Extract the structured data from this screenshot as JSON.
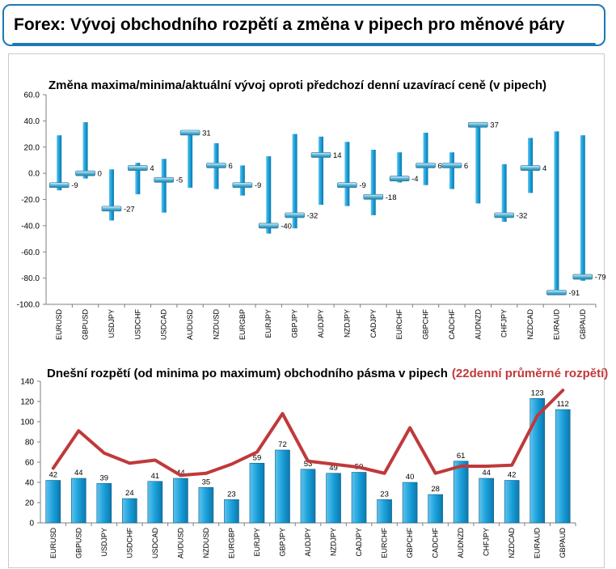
{
  "page_title": "Forex: Vývoj obchodního rozpětí a změna v pipech pro měnové páry",
  "colors": {
    "accent": "#1e78b8",
    "bar": "#1aa0da",
    "line": "#c0393b"
  },
  "chart_data": [
    {
      "type": "range",
      "title": "Změna maxima/minima/aktuální vývoj oproti předchozí denní uzavírací ceně (v pipech)",
      "ylim": [
        -100,
        60
      ],
      "yticks": [
        "60.0",
        "40.0",
        "20.0",
        "0.0",
        "-20.0",
        "-40.0",
        "-60.0",
        "-80.0",
        "-100.0"
      ],
      "ytick_values": [
        60,
        40,
        20,
        0,
        -20,
        -40,
        -60,
        -80,
        -100
      ],
      "categories": [
        "EURUSD",
        "GBPUSD",
        "USDJPY",
        "USDCHF",
        "USDCAD",
        "AUDUSD",
        "NZDUSD",
        "EURGBP",
        "EURJPY",
        "GBPJPY",
        "AUDJPY",
        "NZDJPY",
        "CADJPY",
        "EURCHF",
        "GBPCHF",
        "CADCHF",
        "AUDNZD",
        "CHFJPY",
        "NZDCAD",
        "EURAUD",
        "GBPAUD"
      ],
      "high": [
        29,
        39,
        3,
        8,
        11,
        32,
        23,
        6,
        13,
        30,
        28,
        24,
        18,
        16,
        31,
        16,
        38,
        7,
        27,
        32,
        29
      ],
      "low": [
        -13,
        -4,
        -36,
        -16,
        -30,
        -11,
        -12,
        -17,
        -46,
        -42,
        -24,
        -25,
        -32,
        -7,
        -9,
        -12,
        -23,
        -37,
        -15,
        -91,
        -82
      ],
      "current": [
        -9,
        0,
        -27,
        4,
        -5,
        31,
        6,
        -9,
        -40,
        -32,
        14,
        -9,
        -18,
        -4,
        6,
        6,
        37,
        -32,
        4,
        -91,
        -79
      ],
      "labels": [
        "-9",
        "0",
        "-27",
        "4",
        "-5",
        "31",
        "6",
        "-9",
        "-40",
        "-32",
        "14",
        "-9",
        "-18",
        "-4",
        "6",
        "6",
        "37",
        "-32",
        "4",
        "-91",
        "-79"
      ]
    },
    {
      "type": "bar",
      "title": "Dnešní rozpětí (od minima po maximum) obchodního pásma v pipech",
      "title_suffix": "(22denní průměrné rozpětí)",
      "ylim": [
        0,
        140
      ],
      "yticks": [
        "140",
        "120",
        "100",
        "80",
        "60",
        "40",
        "20",
        "0"
      ],
      "ytick_values": [
        140,
        120,
        100,
        80,
        60,
        40,
        20,
        0
      ],
      "categories": [
        "EURUSD",
        "GBPUSD",
        "USDJPY",
        "USDCHF",
        "USDCAD",
        "AUDUSD",
        "NZDUSD",
        "EURGBP",
        "EURJPY",
        "GBPJPY",
        "AUDJPY",
        "NZDJPY",
        "CADJPY",
        "EURCHF",
        "GBPCHF",
        "CADCHF",
        "AUDNZD",
        "CHFJPY",
        "NZDCAD",
        "EURAUD",
        "GBPAUD"
      ],
      "series": [
        {
          "type": "bar",
          "values": [
            42,
            44,
            39,
            24,
            41,
            44,
            35,
            23,
            59,
            72,
            53,
            49,
            50,
            23,
            40,
            28,
            61,
            44,
            42,
            123,
            112
          ],
          "labels": [
            "42",
            "44",
            "39",
            "24",
            "41",
            "44",
            "35",
            "23",
            "59",
            "72",
            "53",
            "49",
            "50",
            "23",
            "40",
            "28",
            "61",
            "44",
            "42",
            "123",
            "112"
          ]
        },
        {
          "type": "line",
          "values": [
            54,
            91,
            69,
            59,
            62,
            47,
            49,
            58,
            70,
            108,
            61,
            58,
            55,
            49,
            94,
            49,
            56,
            56,
            57,
            106,
            131
          ]
        }
      ]
    }
  ]
}
